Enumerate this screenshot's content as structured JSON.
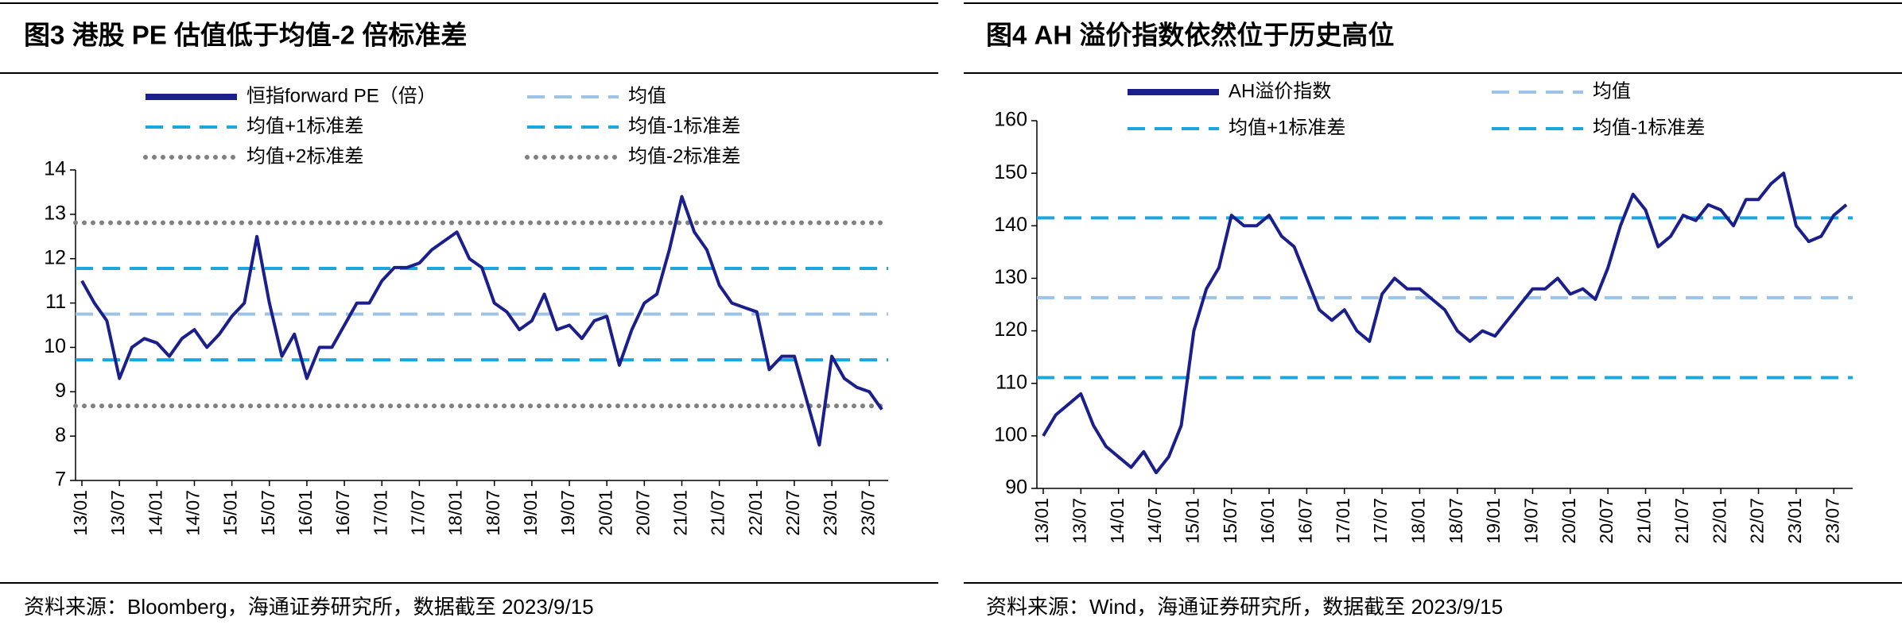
{
  "chart_data": [
    {
      "type": "line",
      "title": "图3  港股 PE 估值低于均值-2 倍标准差",
      "source": "资料来源：Bloomberg，海通证券研究所，数据截至 2023/9/15",
      "x": [
        "13/01",
        "13/03",
        "13/05",
        "13/07",
        "13/09",
        "13/11",
        "14/01",
        "14/03",
        "14/05",
        "14/07",
        "14/09",
        "14/11",
        "15/01",
        "15/03",
        "15/05",
        "15/07",
        "15/09",
        "15/11",
        "16/01",
        "16/03",
        "16/05",
        "16/07",
        "16/09",
        "16/11",
        "17/01",
        "17/03",
        "17/05",
        "17/07",
        "17/09",
        "17/11",
        "18/01",
        "18/03",
        "18/05",
        "18/07",
        "18/09",
        "18/11",
        "19/01",
        "19/03",
        "19/05",
        "19/07",
        "19/09",
        "19/11",
        "20/01",
        "20/03",
        "20/05",
        "20/07",
        "20/09",
        "20/11",
        "21/01",
        "21/03",
        "21/05",
        "21/07",
        "21/09",
        "21/11",
        "22/01",
        "22/03",
        "22/05",
        "22/07",
        "22/09",
        "22/11",
        "23/01",
        "23/03",
        "23/05",
        "23/07",
        "23/09"
      ],
      "xticks": [
        "13/01",
        "13/07",
        "14/01",
        "14/07",
        "15/01",
        "15/07",
        "16/01",
        "16/07",
        "17/01",
        "17/07",
        "18/01",
        "18/07",
        "19/01",
        "19/07",
        "20/01",
        "20/07",
        "21/01",
        "21/07",
        "22/01",
        "22/07",
        "23/01",
        "23/07"
      ],
      "series": [
        {
          "name": "恒指forward PE（倍）",
          "color": "#1a1f8c",
          "values": [
            11.5,
            11.0,
            10.6,
            9.3,
            10.0,
            10.2,
            10.1,
            9.8,
            10.2,
            10.4,
            10.0,
            10.3,
            10.7,
            11.0,
            12.5,
            11.0,
            9.8,
            10.3,
            9.3,
            10.0,
            10.0,
            10.5,
            11.0,
            11.0,
            11.5,
            11.8,
            11.8,
            11.9,
            12.2,
            12.4,
            12.6,
            12.0,
            11.8,
            11.0,
            10.8,
            10.4,
            10.6,
            11.2,
            10.4,
            10.5,
            10.2,
            10.6,
            10.7,
            9.6,
            10.4,
            11.0,
            11.2,
            12.2,
            13.4,
            12.6,
            12.2,
            11.4,
            11.0,
            10.9,
            10.8,
            9.5,
            9.8,
            9.8,
            8.8,
            7.8,
            9.8,
            9.3,
            9.1,
            9.0,
            8.6
          ]
        }
      ],
      "reference_lines": [
        {
          "name": "均值",
          "color": "#9dc3e6",
          "style": "dashed",
          "value": 10.75
        },
        {
          "name": "均值+1标准差",
          "color": "#1aa7e0",
          "style": "dashed",
          "value": 11.78
        },
        {
          "name": "均值-1标准差",
          "color": "#1aa7e0",
          "style": "dashed",
          "value": 9.72
        },
        {
          "name": "均值+2标准差",
          "color": "#808080",
          "style": "dotted",
          "value": 12.81
        },
        {
          "name": "均值-2标准差",
          "color": "#808080",
          "style": "dotted",
          "value": 8.68
        }
      ],
      "ylim": [
        7,
        14
      ],
      "yticks": [
        7,
        8,
        9,
        10,
        11,
        12,
        13,
        14
      ]
    },
    {
      "type": "line",
      "title": "图4  AH 溢价指数依然位于历史高位",
      "source": "资料来源：Wind，海通证券研究所，数据截至 2023/9/15",
      "x": [
        "13/01",
        "13/03",
        "13/05",
        "13/07",
        "13/09",
        "13/11",
        "14/01",
        "14/03",
        "14/05",
        "14/07",
        "14/09",
        "14/11",
        "15/01",
        "15/03",
        "15/05",
        "15/07",
        "15/09",
        "15/11",
        "16/01",
        "16/03",
        "16/05",
        "16/07",
        "16/09",
        "16/11",
        "17/01",
        "17/03",
        "17/05",
        "17/07",
        "17/09",
        "17/11",
        "18/01",
        "18/03",
        "18/05",
        "18/07",
        "18/09",
        "18/11",
        "19/01",
        "19/03",
        "19/05",
        "19/07",
        "19/09",
        "19/11",
        "20/01",
        "20/03",
        "20/05",
        "20/07",
        "20/09",
        "20/11",
        "21/01",
        "21/03",
        "21/05",
        "21/07",
        "21/09",
        "21/11",
        "22/01",
        "22/03",
        "22/05",
        "22/07",
        "22/09",
        "22/11",
        "23/01",
        "23/03",
        "23/05",
        "23/07",
        "23/09"
      ],
      "xticks": [
        "13/01",
        "13/07",
        "14/01",
        "14/07",
        "15/01",
        "15/07",
        "16/01",
        "16/07",
        "17/01",
        "17/07",
        "18/01",
        "18/07",
        "19/01",
        "19/07",
        "20/01",
        "20/07",
        "21/01",
        "21/07",
        "22/01",
        "22/07",
        "23/01",
        "23/07"
      ],
      "series": [
        {
          "name": "AH溢价指数",
          "color": "#1a1f8c",
          "values": [
            100,
            104,
            106,
            108,
            102,
            98,
            96,
            94,
            97,
            93,
            96,
            102,
            120,
            128,
            132,
            142,
            140,
            140,
            142,
            138,
            136,
            130,
            124,
            122,
            124,
            120,
            118,
            127,
            130,
            128,
            128,
            126,
            124,
            120,
            118,
            120,
            119,
            122,
            125,
            128,
            128,
            130,
            127,
            128,
            126,
            132,
            140,
            146,
            143,
            136,
            138,
            142,
            141,
            144,
            143,
            140,
            145,
            145,
            148,
            150,
            140,
            137,
            138,
            142,
            144
          ]
        }
      ],
      "reference_lines": [
        {
          "name": "均值",
          "color": "#9dc3e6",
          "style": "dashed",
          "value": 126.3
        },
        {
          "name": "均值+1标准差",
          "color": "#1aa7e0",
          "style": "dashed",
          "value": 141.5
        },
        {
          "name": "均值-1标准差",
          "color": "#1aa7e0",
          "style": "dashed",
          "value": 111.1
        }
      ],
      "ylim": [
        90,
        160
      ],
      "yticks": [
        90,
        100,
        110,
        120,
        130,
        140,
        150,
        160
      ]
    }
  ]
}
